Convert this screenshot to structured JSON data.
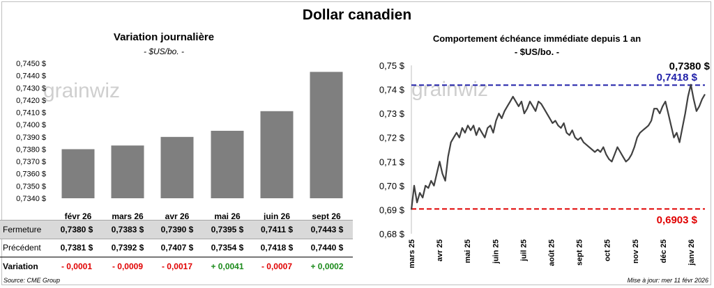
{
  "title": "Dollar canadien",
  "left_panel": {
    "title": "Variation  journalière",
    "unit": "- $US/bo. -"
  },
  "right_panel": {
    "title": "Comportement échéance immédiate depuis 1 an",
    "unit": "- $US/bo. -",
    "last_label": "0,7380 $",
    "high_label": "0,7418 $",
    "low_label": "0,6903 $"
  },
  "watermark": "grainwiz",
  "table": {
    "row_labels": {
      "close": "Fermeture",
      "prev": "Précédent",
      "change": "Variation"
    },
    "columns": [
      {
        "close": "0,7380  $",
        "prev": "0,7381  $",
        "change": "- 0,0001"
      },
      {
        "close": "0,7383  $",
        "prev": "0,7392  $",
        "change": "- 0,0009"
      },
      {
        "close": "0,7390  $",
        "prev": "0,7407  $",
        "change": "- 0,0017"
      },
      {
        "close": "0,7395  $",
        "prev": "0,7354  $",
        "change": "+ 0,0041"
      },
      {
        "close": "0,7411  $",
        "prev": "0,7418  $",
        "change": "- 0,0007"
      },
      {
        "close": "0,7443  $",
        "prev": "0,7440  $",
        "change": "+ 0,0002"
      }
    ]
  },
  "footer": {
    "source": "Source: CME Group",
    "updated": "Mise à jour: mer 11 févr 2026"
  },
  "colors": {
    "bar": "#7f7f7f",
    "line": "#404040",
    "high": "#1f1fa8",
    "low": "#e00000",
    "pos": "#1a8a1a",
    "neg": "#e00000"
  },
  "chart_data": [
    {
      "type": "bar",
      "categories": [
        "févr 26",
        "mars 26",
        "avr 26",
        "mai 26",
        "juin 26",
        "sept 26"
      ],
      "values": [
        0.738,
        0.7383,
        0.739,
        0.7395,
        0.7411,
        0.7443
      ],
      "ylim": [
        0.734,
        0.745
      ],
      "yticks": [
        "0,7340 $",
        "0,7350 $",
        "0,7360 $",
        "0,7370 $",
        "0,7380 $",
        "0,7390 $",
        "0,7400 $",
        "0,7410 $",
        "0,7420 $",
        "0,7430 $",
        "0,7440 $",
        "0,7450 $"
      ],
      "grid": false
    },
    {
      "type": "line",
      "xticks": [
        "mars 25",
        "avr 25",
        "mai 25",
        "juin 25",
        "juil 25",
        "août 25",
        "sept 25",
        "oct 25",
        "nov 25",
        "déc 25",
        "janv 26"
      ],
      "yticks": [
        "0,68 $",
        "0,69 $",
        "0,70 $",
        "0,71 $",
        "0,72 $",
        "0,73 $",
        "0,74 $",
        "0,75 $"
      ],
      "ylim": [
        0.68,
        0.75
      ],
      "y": [
        0.69,
        0.7,
        0.693,
        0.697,
        0.695,
        0.7,
        0.699,
        0.702,
        0.7,
        0.705,
        0.71,
        0.705,
        0.702,
        0.712,
        0.718,
        0.72,
        0.722,
        0.72,
        0.724,
        0.722,
        0.725,
        0.723,
        0.725,
        0.721,
        0.724,
        0.722,
        0.72,
        0.724,
        0.725,
        0.722,
        0.727,
        0.73,
        0.728,
        0.731,
        0.733,
        0.735,
        0.737,
        0.735,
        0.733,
        0.735,
        0.73,
        0.732,
        0.735,
        0.733,
        0.731,
        0.735,
        0.734,
        0.732,
        0.73,
        0.728,
        0.726,
        0.727,
        0.725,
        0.724,
        0.726,
        0.722,
        0.721,
        0.723,
        0.72,
        0.719,
        0.72,
        0.718,
        0.717,
        0.716,
        0.715,
        0.714,
        0.715,
        0.714,
        0.716,
        0.713,
        0.711,
        0.71,
        0.713,
        0.716,
        0.714,
        0.712,
        0.71,
        0.711,
        0.713,
        0.716,
        0.72,
        0.722,
        0.723,
        0.724,
        0.725,
        0.727,
        0.732,
        0.732,
        0.73,
        0.733,
        0.735,
        0.73,
        0.725,
        0.72,
        0.722,
        0.718,
        0.724,
        0.73,
        0.737,
        0.742,
        0.736,
        0.731,
        0.733,
        0.736,
        0.738
      ],
      "hlines": [
        {
          "name": "high",
          "value": 0.7418
        },
        {
          "name": "low",
          "value": 0.6903
        }
      ],
      "grid": false
    }
  ]
}
